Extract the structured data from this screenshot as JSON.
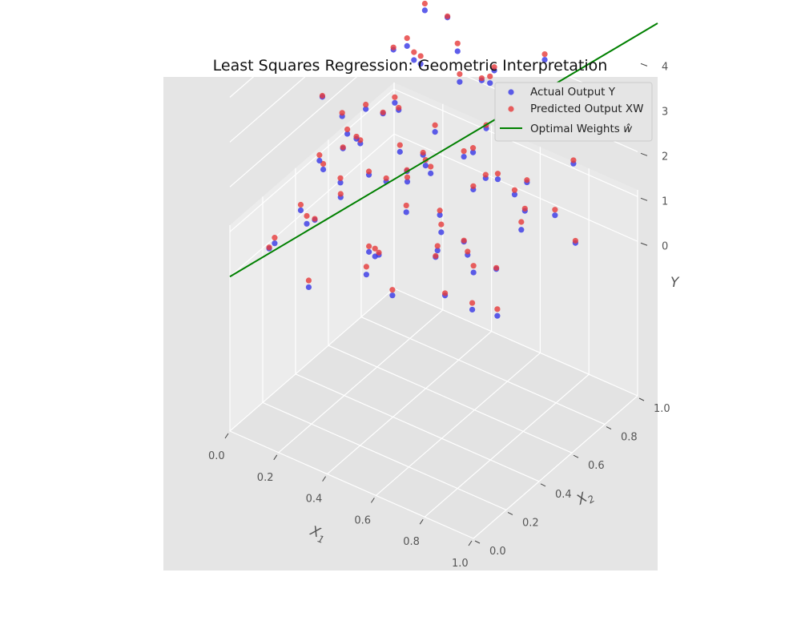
{
  "chart_data": {
    "type": "scatter",
    "projection": "3d",
    "title": "Least Squares Regression: Geometric Interpretation",
    "xlabel": "X",
    "xlabel_subscript": "1",
    "ylabel": "X",
    "ylabel_subscript": "2",
    "zlabel": "Y",
    "xlim": [
      0,
      1
    ],
    "ylim": [
      0,
      1
    ],
    "zlim": [
      0,
      4.5
    ],
    "x_ticks": [
      "0.0",
      "0.2",
      "0.4",
      "0.6",
      "0.8",
      "1.0"
    ],
    "y_ticks": [
      "0.0",
      "0.2",
      "0.4",
      "0.6",
      "0.8",
      "1.0"
    ],
    "z_ticks": [
      "0",
      "1",
      "2",
      "3",
      "4"
    ],
    "grid": true,
    "legend_position": "top-right",
    "legend": [
      {
        "label": "Actual Output Y",
        "color": "#3a3ae6",
        "kind": "marker"
      },
      {
        "label": "Predicted Output XW",
        "color": "#e63a3a",
        "kind": "marker"
      },
      {
        "label": "Optimal Weights ",
        "math": "ŵ",
        "color": "#008000",
        "kind": "line"
      }
    ],
    "colors": {
      "actual": "#3a3ae6",
      "predicted": "#e63a3a",
      "weights": "#008000",
      "pane": "#e5e5e5"
    },
    "line": {
      "points": [
        [
          0,
          0,
          0
        ],
        [
          1,
          1,
          4.6
        ]
      ]
    },
    "points": [
      [
        0.04,
        0.18,
        0.15
      ],
      [
        0.05,
        0.72,
        0.8
      ],
      [
        0.08,
        0.45,
        1.15
      ],
      [
        0.1,
        0.32,
        0.4
      ],
      [
        0.12,
        0.85,
        1.3
      ],
      [
        0.14,
        0.62,
        2.1
      ],
      [
        0.16,
        0.95,
        3.3
      ],
      [
        0.18,
        0.25,
        0.9
      ],
      [
        0.2,
        0.55,
        1.0
      ],
      [
        0.21,
        0.12,
        1.6
      ],
      [
        0.23,
        0.78,
        2.9
      ],
      [
        0.25,
        0.4,
        2.4
      ],
      [
        0.27,
        0.68,
        0.6
      ],
      [
        0.29,
        0.05,
        0.3
      ],
      [
        0.3,
        0.88,
        3.7
      ],
      [
        0.32,
        0.2,
        1.9
      ],
      [
        0.34,
        0.5,
        3.1
      ],
      [
        0.36,
        0.35,
        0.2
      ],
      [
        0.38,
        0.97,
        2.2
      ],
      [
        0.4,
        0.08,
        2.8
      ],
      [
        0.42,
        0.6,
        1.4
      ],
      [
        0.44,
        0.28,
        3.8
      ],
      [
        0.46,
        0.8,
        0.5
      ],
      [
        0.47,
        0.15,
        1.2
      ],
      [
        0.49,
        0.66,
        4.1
      ],
      [
        0.51,
        0.42,
        2.6
      ],
      [
        0.53,
        0.92,
        1.7
      ],
      [
        0.55,
        0.22,
        3.4
      ],
      [
        0.57,
        0.58,
        0.3
      ],
      [
        0.58,
        0.75,
        3.6
      ],
      [
        0.6,
        0.1,
        0.7
      ],
      [
        0.62,
        0.48,
        4.3
      ],
      [
        0.64,
        0.86,
        0.9
      ],
      [
        0.66,
        0.3,
        2.0
      ],
      [
        0.68,
        0.7,
        2.7
      ],
      [
        0.7,
        0.04,
        3.9
      ],
      [
        0.72,
        0.38,
        1.0
      ],
      [
        0.74,
        0.82,
        4.0
      ],
      [
        0.76,
        0.16,
        2.3
      ],
      [
        0.78,
        0.64,
        1.3
      ],
      [
        0.8,
        0.9,
        3.2
      ],
      [
        0.82,
        0.26,
        0.4
      ],
      [
        0.84,
        0.52,
        3.5
      ],
      [
        0.86,
        0.96,
        2.5
      ],
      [
        0.88,
        0.12,
        4.4
      ],
      [
        0.9,
        0.44,
        1.8
      ],
      [
        0.92,
        0.74,
        0.6
      ],
      [
        0.94,
        0.34,
        3.0
      ],
      [
        0.96,
        0.06,
        2.2
      ],
      [
        0.98,
        0.6,
        4.0
      ],
      [
        0.07,
        0.58,
        1.9
      ],
      [
        0.13,
        0.08,
        0.8
      ],
      [
        0.19,
        0.88,
        2.4
      ],
      [
        0.24,
        0.64,
        3.6
      ],
      [
        0.28,
        0.3,
        2.9
      ],
      [
        0.33,
        0.76,
        1.6
      ],
      [
        0.37,
        0.14,
        3.3
      ],
      [
        0.43,
        0.92,
        0.3
      ],
      [
        0.48,
        0.48,
        2.1
      ],
      [
        0.52,
        0.06,
        1.1
      ],
      [
        0.56,
        0.84,
        2.8
      ],
      [
        0.61,
        0.36,
        0.9
      ],
      [
        0.65,
        0.62,
        3.9
      ],
      [
        0.71,
        0.2,
        1.5
      ],
      [
        0.75,
        0.98,
        1.2
      ],
      [
        0.79,
        0.46,
        2.6
      ],
      [
        0.83,
        0.72,
        3.7
      ],
      [
        0.87,
        0.02,
        1.6
      ],
      [
        0.91,
        0.86,
        2.9
      ],
      [
        0.95,
        0.22,
        0.7
      ],
      [
        0.11,
        0.4,
        3.0
      ],
      [
        0.17,
        0.7,
        0.3
      ],
      [
        0.26,
        0.16,
        2.7
      ],
      [
        0.35,
        0.56,
        4.2
      ],
      [
        0.45,
        0.24,
        0.8
      ],
      [
        0.54,
        0.68,
        1.9
      ],
      [
        0.63,
        0.14,
        2.5
      ],
      [
        0.73,
        0.54,
        0.2
      ],
      [
        0.81,
        0.36,
        4.1
      ],
      [
        0.89,
        0.66,
        1.4
      ]
    ]
  }
}
